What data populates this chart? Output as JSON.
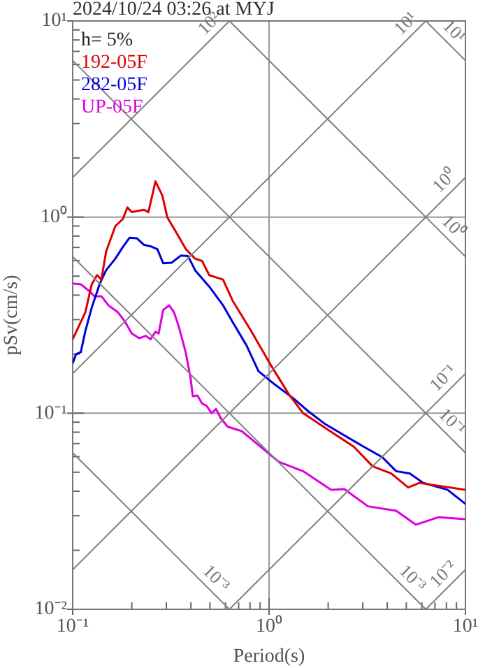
{
  "chart_data": {
    "type": "line",
    "title": "2024/10/24 03:26 at MYJ",
    "xlabel": "Period(s)",
    "ylabel": "pSv(cm/s)",
    "log": "xy",
    "grid": true,
    "legend": "top left",
    "marker": "none",
    "xlim": [
      0.1,
      10
    ],
    "ylim": [
      0.01,
      10
    ],
    "xticks": [
      {
        "value": 0.1,
        "label": "10⁻¹"
      },
      {
        "value": 0.2,
        "label": null
      },
      {
        "value": 0.3,
        "label": null
      },
      {
        "value": 0.4,
        "label": null
      },
      {
        "value": 0.5,
        "label": null
      },
      {
        "value": 0.6,
        "label": null
      },
      {
        "value": 0.7,
        "label": null
      },
      {
        "value": 0.8,
        "label": null
      },
      {
        "value": 0.9,
        "label": null
      },
      {
        "value": 1,
        "label": "10⁰"
      },
      {
        "value": 2,
        "label": null
      },
      {
        "value": 3,
        "label": null
      },
      {
        "value": 4,
        "label": null
      },
      {
        "value": 5,
        "label": null
      },
      {
        "value": 6,
        "label": null
      },
      {
        "value": 7,
        "label": null
      },
      {
        "value": 8,
        "label": null
      },
      {
        "value": 9,
        "label": null
      },
      {
        "value": 10,
        "label": "10¹"
      }
    ],
    "yticks": [
      {
        "value": 0.01,
        "label": "10⁻²"
      },
      {
        "value": 0.02,
        "label": null
      },
      {
        "value": 0.03,
        "label": null
      },
      {
        "value": 0.04,
        "label": null
      },
      {
        "value": 0.05,
        "label": null
      },
      {
        "value": 0.06,
        "label": null
      },
      {
        "value": 0.07,
        "label": null
      },
      {
        "value": 0.08,
        "label": null
      },
      {
        "value": 0.09,
        "label": null
      },
      {
        "value": 0.1,
        "label": "10⁻¹"
      },
      {
        "value": 0.2,
        "label": null
      },
      {
        "value": 0.3,
        "label": null
      },
      {
        "value": 0.4,
        "label": null
      },
      {
        "value": 0.5,
        "label": null
      },
      {
        "value": 0.6,
        "label": null
      },
      {
        "value": 0.7,
        "label": null
      },
      {
        "value": 0.8,
        "label": null
      },
      {
        "value": 0.9,
        "label": null
      },
      {
        "value": 1,
        "label": "10⁰"
      },
      {
        "value": 2,
        "label": null
      },
      {
        "value": 3,
        "label": null
      },
      {
        "value": 4,
        "label": null
      },
      {
        "value": 5,
        "label": null
      },
      {
        "value": 6,
        "label": null
      },
      {
        "value": 7,
        "label": null
      },
      {
        "value": 8,
        "label": null
      },
      {
        "value": 9,
        "label": null
      },
      {
        "value": 10,
        "label": "10¹"
      }
    ],
    "series": [
      {
        "color": "#808080",
        "x": [
          0.1,
          0.6283
        ],
        "values": [
          1.592,
          10
        ]
      },
      {
        "color": "#808080",
        "x": [
          0.1,
          6.283
        ],
        "values": [
          0.1592,
          10
        ]
      },
      {
        "color": "#808080",
        "x": [
          0.1,
          10
        ],
        "values": [
          0.01592,
          1.592
        ]
      },
      {
        "color": "#808080",
        "x": [
          0.6283,
          10
        ],
        "values": [
          0.01,
          0.1592
        ]
      },
      {
        "color": "#808080",
        "x": [
          6.283,
          10
        ],
        "values": [
          0.01,
          0.01592
        ]
      },
      {
        "color": "#808080",
        "x": [
          6.283,
          10
        ],
        "values": [
          10,
          6.283
        ]
      },
      {
        "color": "#808080",
        "x": [
          0.6283,
          10
        ],
        "values": [
          10,
          0.6283
        ]
      },
      {
        "color": "#808080",
        "x": [
          0.1,
          10
        ],
        "values": [
          6.283,
          0.06283
        ]
      },
      {
        "color": "#808080",
        "x": [
          0.1,
          6.283
        ],
        "values": [
          0.6283,
          0.01
        ]
      },
      {
        "color": "#808080",
        "x": [
          0.1,
          0.6283
        ],
        "values": [
          0.06283,
          0.01
        ]
      },
      {
        "name": "192-05F",
        "color": "#dd0000",
        "x": [
          0.1,
          0.116,
          0.125,
          0.133,
          0.14,
          0.148,
          0.165,
          0.18,
          0.19,
          0.2,
          0.23,
          0.243,
          0.264,
          0.286,
          0.303,
          0.338,
          0.377,
          0.42,
          0.456,
          0.496,
          0.537,
          0.583,
          0.652,
          0.812,
          1.01,
          1.26,
          1.49,
          1.97,
          2.7,
          3.37,
          4.19,
          5.11,
          5.83,
          10
        ],
        "values": [
          0.238,
          0.327,
          0.454,
          0.506,
          0.48,
          0.667,
          0.9,
          0.977,
          1.12,
          1.06,
          1.09,
          1.06,
          1.52,
          1.29,
          1.0,
          0.83,
          0.686,
          0.614,
          0.597,
          0.506,
          0.493,
          0.48,
          0.375,
          0.262,
          0.179,
          0.125,
          0.1,
          0.083,
          0.0675,
          0.0536,
          0.0493,
          0.0418,
          0.0441,
          0.0407
        ]
      },
      {
        "name": "282-05F",
        "color": "#0000dd",
        "x": [
          0.1,
          0.104,
          0.11,
          0.116,
          0.125,
          0.137,
          0.148,
          0.165,
          0.18,
          0.195,
          0.212,
          0.23,
          0.249,
          0.27,
          0.289,
          0.319,
          0.356,
          0.387,
          0.42,
          0.496,
          0.583,
          0.652,
          0.767,
          0.883,
          1.07,
          1.33,
          1.57,
          1.94,
          3.03,
          3.77,
          4.44,
          5.2,
          6.1,
          8.1,
          10
        ],
        "values": [
          0.179,
          0.2,
          0.205,
          0.262,
          0.345,
          0.454,
          0.536,
          0.614,
          0.703,
          0.785,
          0.78,
          0.723,
          0.71,
          0.686,
          0.581,
          0.585,
          0.637,
          0.632,
          0.536,
          0.442,
          0.355,
          0.292,
          0.222,
          0.164,
          0.14,
          0.119,
          0.103,
          0.0877,
          0.0675,
          0.0597,
          0.0506,
          0.0493,
          0.0441,
          0.0407,
          0.0345
        ]
      },
      {
        "name": "UP-05F",
        "color": "#dd00dd",
        "x": [
          0.1,
          0.11,
          0.122,
          0.129,
          0.14,
          0.152,
          0.17,
          0.185,
          0.2,
          0.218,
          0.236,
          0.249,
          0.264,
          0.274,
          0.289,
          0.31,
          0.328,
          0.347,
          0.376,
          0.398,
          0.409,
          0.432,
          0.456,
          0.481,
          0.51,
          0.537,
          0.567,
          0.616,
          0.726,
          1.12,
          1.49,
          2.07,
          2.42,
          3.19,
          4.44,
          5.6,
          7.3,
          10
        ],
        "values": [
          0.458,
          0.454,
          0.418,
          0.395,
          0.395,
          0.355,
          0.327,
          0.292,
          0.255,
          0.241,
          0.248,
          0.238,
          0.26,
          0.255,
          0.336,
          0.355,
          0.327,
          0.277,
          0.205,
          0.152,
          0.122,
          0.123,
          0.112,
          0.109,
          0.1,
          0.105,
          0.0945,
          0.0853,
          0.081,
          0.0565,
          0.0506,
          0.0407,
          0.041,
          0.0335,
          0.0318,
          0.027,
          0.0295,
          0.0288
        ]
      }
    ],
    "annotations": [
      "h= 5%",
      {
        "text": "10²",
        "x": 0.6283,
        "y": 10
      },
      {
        "text": "10¹",
        "x": 6.283,
        "y": 10
      },
      {
        "text": "10⁰",
        "x": 10,
        "y": 1.592
      },
      {
        "text": "10⁻¹",
        "x": 10,
        "y": 0.1592
      },
      {
        "text": "10⁻²",
        "x": 10,
        "y": 0.01592
      },
      {
        "text": "10¹",
        "x": 10,
        "y": 6.283
      },
      {
        "text": "10⁰",
        "x": 10,
        "y": 0.6283
      },
      {
        "text": "10⁻¹",
        "x": 10,
        "y": 0.06283
      },
      {
        "text": "10⁻³",
        "x": 6.283,
        "y": 0.01
      },
      {
        "text": "10⁻³",
        "x": 0.6283,
        "y": 0.01
      }
    ]
  }
}
